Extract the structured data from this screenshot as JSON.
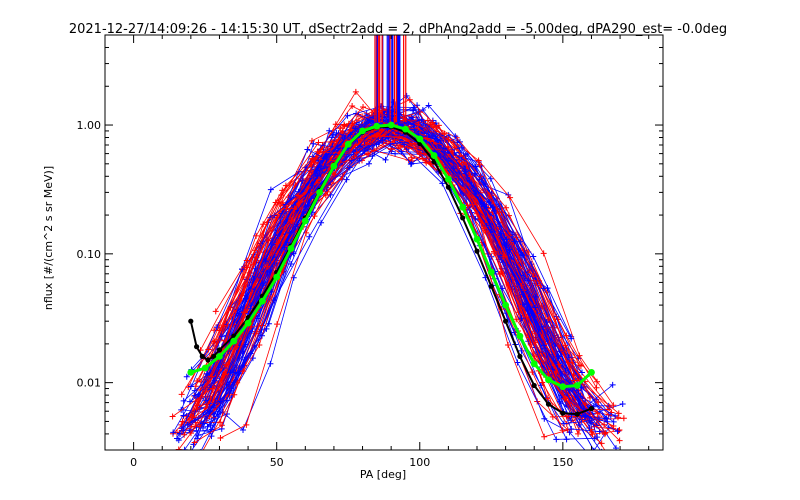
{
  "chart_data": {
    "type": "line",
    "title": "2021-12-27/14:09:26 - 14:15:30 UT, dSectr2add = 2, dPhAng2add = -5.00deg, dPA290_est=  -0.0deg",
    "xlabel": "PA [deg]",
    "ylabel": "nflux [#/(cm^2 s sr MeV)]",
    "xlim": [
      -10,
      185
    ],
    "ylim": [
      0.003,
      5
    ],
    "y_scale": "log",
    "x_ticks": [
      0,
      50,
      100,
      150
    ],
    "x_tick_labels": [
      "0",
      "50",
      "100",
      "150"
    ],
    "y_ticks": [
      0.01,
      0.1,
      1.0
    ],
    "y_tick_labels": [
      "0.01",
      "0.10",
      "1.00"
    ],
    "grid": false,
    "colors": {
      "sector_a": "#ff0000",
      "sector_b": "#0000ff",
      "fit": "#00ff00",
      "average": "#000000",
      "axis": "#000000",
      "background": "#ffffff"
    },
    "series": [
      {
        "color": "#00ff00",
        "marker": "filled-circle",
        "x": [
          20,
          25,
          30,
          35,
          40,
          45,
          50,
          55,
          60,
          65,
          70,
          75,
          80,
          85,
          90,
          95,
          100,
          105,
          110,
          115,
          120,
          125,
          130,
          135,
          140,
          145,
          150,
          155,
          160
        ],
        "y": [
          0.012,
          0.013,
          0.016,
          0.021,
          0.029,
          0.043,
          0.066,
          0.11,
          0.18,
          0.3,
          0.48,
          0.71,
          0.9,
          0.98,
          1.0,
          0.93,
          0.78,
          0.58,
          0.38,
          0.23,
          0.13,
          0.072,
          0.04,
          0.023,
          0.014,
          0.0105,
          0.0093,
          0.0095,
          0.012
        ]
      },
      {
        "color": "#000000",
        "marker": "filled-circle",
        "x": [
          20,
          22,
          24,
          26,
          28,
          30,
          35,
          40,
          45,
          50,
          55,
          60,
          65,
          70,
          75,
          80,
          85,
          90,
          95,
          100,
          105,
          110,
          115,
          120,
          125,
          130,
          135,
          140,
          145,
          150,
          155,
          160
        ],
        "y": [
          0.03,
          0.019,
          0.016,
          0.015,
          0.016,
          0.018,
          0.023,
          0.032,
          0.047,
          0.072,
          0.115,
          0.19,
          0.31,
          0.49,
          0.7,
          0.88,
          0.96,
          0.97,
          0.88,
          0.72,
          0.52,
          0.33,
          0.19,
          0.105,
          0.056,
          0.03,
          0.016,
          0.0095,
          0.0068,
          0.0058,
          0.0057,
          0.0063
        ]
      }
    ]
  }
}
